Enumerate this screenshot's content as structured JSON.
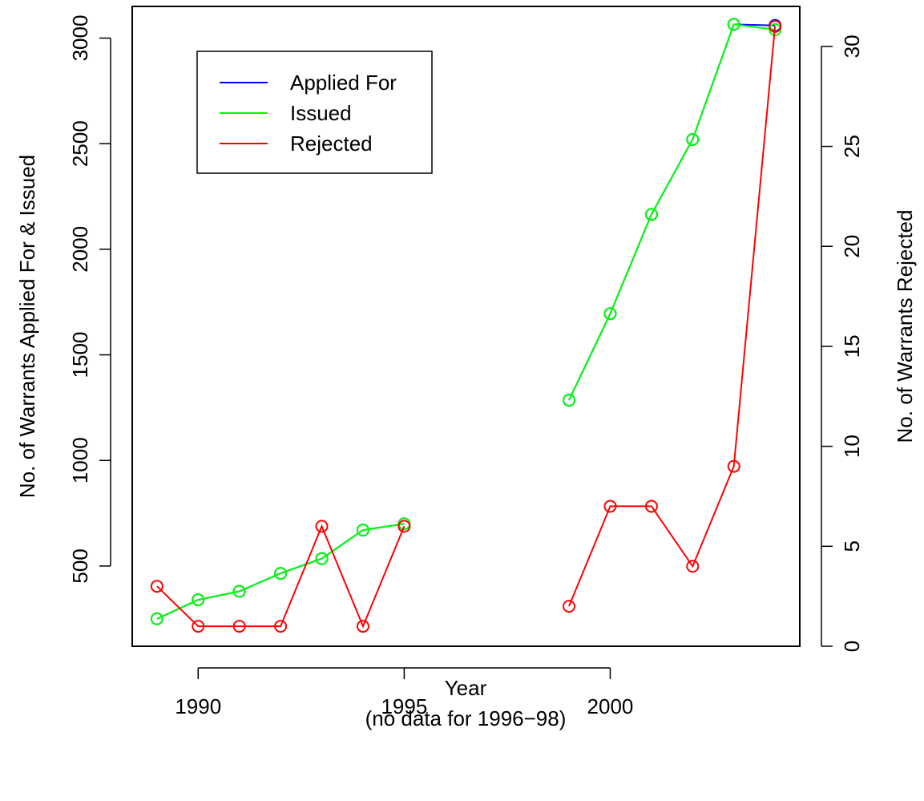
{
  "chart_data": {
    "type": "line",
    "title": "",
    "xlabel": "Year",
    "xlabel_note": "(no data for 1996−98)",
    "ylabel_left": "No. of Warrants Applied For & Issued",
    "ylabel_right": "No. of Warrants Rejected",
    "xlim": [
      1988.4,
      2004.6
    ],
    "ylim_left": [
      120,
      3150
    ],
    "ylim_right": [
      0,
      32
    ],
    "x_ticks": [
      1990,
      1995,
      2000
    ],
    "y_left_ticks": [
      500,
      1000,
      1500,
      2000,
      2500,
      3000
    ],
    "y_right_ticks": [
      0,
      5,
      10,
      15,
      20,
      25,
      30
    ],
    "grid": false,
    "legend_position": "top-left",
    "segments": [
      [
        1989,
        1990,
        1991,
        1992,
        1993,
        1994,
        1995
      ],
      [
        1999,
        2000,
        2001,
        2002,
        2003,
        2004
      ]
    ],
    "series": [
      {
        "name": "Applied For",
        "axis": "left",
        "color": "#0000ff",
        "x": [
          1989,
          1990,
          1991,
          1992,
          1993,
          1994,
          1995,
          1999,
          2000,
          2001,
          2002,
          2003,
          2004
        ],
        "values": [
          250,
          340,
          380,
          465,
          535,
          670,
          700,
          1285,
          1695,
          2165,
          2520,
          3065,
          3060
        ]
      },
      {
        "name": "Issued",
        "axis": "left",
        "color": "#00ff00",
        "x": [
          1989,
          1990,
          1991,
          1992,
          1993,
          1994,
          1995,
          1999,
          2000,
          2001,
          2002,
          2003,
          2004
        ],
        "values": [
          250,
          340,
          380,
          465,
          535,
          670,
          700,
          1285,
          1695,
          2165,
          2520,
          3065,
          3040
        ]
      },
      {
        "name": "Rejected",
        "axis": "right",
        "color": "#ff0000",
        "x": [
          1989,
          1990,
          1991,
          1992,
          1993,
          1994,
          1995,
          1999,
          2000,
          2001,
          2002,
          2003,
          2004
        ],
        "values": [
          3,
          1,
          1,
          1,
          6,
          1,
          6,
          2,
          7,
          7,
          4,
          9,
          31
        ]
      }
    ]
  }
}
